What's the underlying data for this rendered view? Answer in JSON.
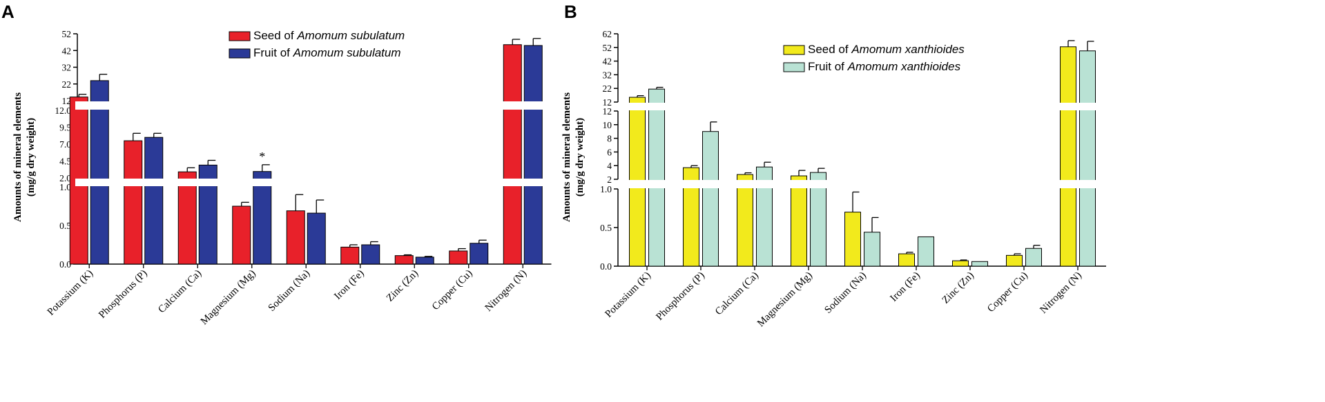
{
  "figure": {
    "panel_a_letter": "A",
    "panel_b_letter": "B"
  },
  "chart_data": [
    {
      "type": "bar",
      "panel": "A",
      "ylabel_line1": "Amounts of mineral elements",
      "ylabel_line2": "(mg/g dry weight)",
      "categories": [
        "Potassium (K)",
        "Phosphorus (P)",
        "Calcium (Ca)",
        "Magnesium (Mg)",
        "Sodium (Na)",
        "Iron (Fe)",
        "Zinc (Zn)",
        "Copper (Cu)",
        "Nitrogen (N)"
      ],
      "series": [
        {
          "name_prefix": "Seed of ",
          "name_species": "Amomum subulatum",
          "color": "#e8212a",
          "values": [
            14.2,
            7.5,
            2.9,
            0.75,
            0.69,
            0.22,
            0.11,
            0.17,
            45.5
          ],
          "errors": [
            1.6,
            1.1,
            0.6,
            0.05,
            0.21,
            0.03,
            0.01,
            0.03,
            3.2
          ]
        },
        {
          "name_prefix": "Fruit of ",
          "name_species": "Amomum subulatum",
          "color": "#2b3a97",
          "values": [
            24,
            8.0,
            3.9,
            2.95,
            0.66,
            0.25,
            0.09,
            0.27,
            45
          ],
          "errors": [
            3.8,
            0.6,
            0.7,
            1.0,
            0.17,
            0.04,
            0.01,
            0.04,
            4.2
          ]
        }
      ],
      "annotations": [
        {
          "category": "Magnesium (Mg)",
          "series": 1,
          "text": "*"
        }
      ],
      "segments": [
        {
          "ylim": [
            0,
            1.0
          ],
          "ticks": [
            "0.0",
            "0.5",
            "1.0"
          ]
        },
        {
          "ylim": [
            2.0,
            12.0
          ],
          "ticks": [
            "2.0",
            "4.5",
            "7.0",
            "9.5",
            "12.0"
          ]
        },
        {
          "ylim": [
            12,
            52
          ],
          "ticks": [
            "12",
            "22",
            "32",
            "42",
            "52"
          ]
        }
      ],
      "legend_position": "top-right"
    },
    {
      "type": "bar",
      "panel": "B",
      "ylabel_line1": "Amounts of mineral elements",
      "ylabel_line2": "(mg/g dry weight)",
      "categories": [
        "Potassium (K)",
        "Phosphorus (P)",
        "Calcium (Ca)",
        "Magnesium (Mg)",
        "Sodium (Na)",
        "Iron (Fe)",
        "Zinc (Zn)",
        "Copper (Cu)",
        "Nitrogen (N)"
      ],
      "series": [
        {
          "name_prefix": "Seed of ",
          "name_species": "Amomum xanthioides",
          "color": "#f2ea1c",
          "values": [
            15.5,
            3.7,
            2.7,
            2.5,
            0.7,
            0.16,
            0.07,
            0.14,
            52.5
          ],
          "errors": [
            1.2,
            0.3,
            0.25,
            0.8,
            0.26,
            0.02,
            0.01,
            0.02,
            4.5
          ]
        },
        {
          "name_prefix": "Fruit of ",
          "name_species": "Amomum xanthioides",
          "color": "#b9e2d4",
          "values": [
            21.5,
            9.0,
            3.8,
            3.0,
            0.44,
            0.38,
            0.06,
            0.23,
            49.5
          ],
          "errors": [
            1.3,
            1.4,
            0.7,
            0.6,
            0.19,
            0.0,
            0.0,
            0.04,
            7.0
          ]
        }
      ],
      "segments": [
        {
          "ylim": [
            0,
            1.0
          ],
          "ticks": [
            "0.0",
            "0.5",
            "1.0"
          ]
        },
        {
          "ylim": [
            2,
            12
          ],
          "ticks": [
            "2",
            "4",
            "6",
            "8",
            "10",
            "12"
          ]
        },
        {
          "ylim": [
            12,
            62
          ],
          "ticks": [
            "12",
            "22",
            "32",
            "42",
            "52",
            "62"
          ]
        }
      ],
      "legend_position": "top-right"
    }
  ]
}
